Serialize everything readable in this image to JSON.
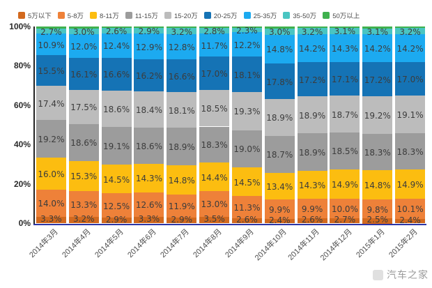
{
  "chart_data": {
    "type": "bar",
    "variant": "stacked-percent",
    "title": "",
    "xlabel": "",
    "ylabel": "",
    "ylim": [
      0,
      100
    ],
    "ytick_labels": [
      "100%",
      "80%",
      "60%",
      "40%",
      "20%",
      "0%"
    ],
    "legend_position": "top",
    "grid": false,
    "value_label_suffix": "%",
    "categories": [
      "2014年3月",
      "2014年4月",
      "2014年5月",
      "2014年6月",
      "2014年7月",
      "2014年8月",
      "2014年9月",
      "2014年10月",
      "2014年11月",
      "2014年12月",
      "2015年1月",
      "2015年2月"
    ],
    "series": [
      {
        "name": "5万以下",
        "color": "#d2691e",
        "show_labels": true,
        "values": [
          3.3,
          3.2,
          2.9,
          3.3,
          2.9,
          3.5,
          2.6,
          2.4,
          2.6,
          2.7,
          2.5,
          2.4
        ]
      },
      {
        "name": "5-8万",
        "color": "#ee8139",
        "show_labels": true,
        "values": [
          14.0,
          13.3,
          12.5,
          12.6,
          11.9,
          13.0,
          11.3,
          9.9,
          9.9,
          10.0,
          9.8,
          10.1
        ]
      },
      {
        "name": "8-11万",
        "color": "#fcbd10",
        "show_labels": true,
        "values": [
          16.0,
          15.3,
          14.5,
          14.3,
          14.8,
          14.4,
          14.5,
          13.4,
          14.3,
          14.9,
          14.8,
          14.9
        ]
      },
      {
        "name": "11-15万",
        "color": "#9c9c9c",
        "show_labels": true,
        "values": [
          19.2,
          18.6,
          19.1,
          18.6,
          18.9,
          18.3,
          19.0,
          18.7,
          18.9,
          18.5,
          18.3,
          18.3
        ]
      },
      {
        "name": "15-20万",
        "color": "#bcbcbc",
        "show_labels": true,
        "values": [
          17.4,
          17.5,
          18.6,
          18.4,
          18.1,
          18.5,
          19.3,
          18.9,
          18.9,
          18.7,
          19.2,
          19.1
        ]
      },
      {
        "name": "20-25万",
        "color": "#1573b5",
        "show_labels": true,
        "values": [
          15.5,
          16.1,
          16.6,
          16.2,
          16.6,
          17.0,
          18.1,
          17.8,
          17.2,
          17.1,
          17.2,
          17.0
        ]
      },
      {
        "name": "25-35万",
        "color": "#1caaf0",
        "show_labels": true,
        "values": [
          10.9,
          12.0,
          12.4,
          12.9,
          12.8,
          11.7,
          12.2,
          14.8,
          14.2,
          14.3,
          14.2,
          14.2
        ]
      },
      {
        "name": "35-50万",
        "color": "#4ac5c2",
        "show_labels": true,
        "values": [
          2.7,
          3.0,
          2.6,
          2.9,
          3.2,
          2.8,
          2.3,
          3.0,
          3.2,
          3.1,
          3.1,
          3.2
        ]
      },
      {
        "name": "50万以上",
        "color": "#3fb14e",
        "show_labels": false,
        "values": [
          1.0,
          1.0,
          0.8,
          0.8,
          0.8,
          0.8,
          0.7,
          1.1,
          0.8,
          0.7,
          0.9,
          0.8
        ]
      }
    ],
    "axis_colors": {
      "x_line": "#2c35a5",
      "y_line": "#222222"
    }
  },
  "watermark": {
    "text": "汽车之家"
  }
}
